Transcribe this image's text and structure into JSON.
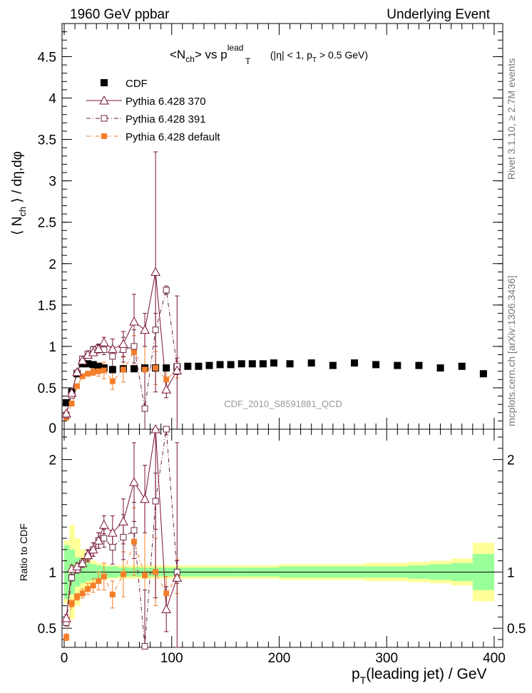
{
  "header": {
    "left": "1960 GeV ppbar",
    "right": "Underlying Event",
    "side_top": "Rivet 3.1.10, ≥ 2.7M events",
    "side_bottom": "mcplots.cern.ch [arXiv:1306.3436]",
    "watermark": "CDF_2010_S8591881_QCD"
  },
  "colors": {
    "cdf": "#000000",
    "p370": "#7a1233",
    "p391": "#6b2346",
    "pdefault": "#f47f2a",
    "band_inner": "#99ff99",
    "band_outer": "#ffff99"
  },
  "chart_data": [
    {
      "type": "scatter",
      "title": "<Nch> vs pT lead (|η| < 1, pT > 0.5 GeV)",
      "title_parts": {
        "main": "<N",
        "sub_ch": "ch",
        "mid": "> vs p",
        "sup": "lead",
        "sub_t": "T",
        "tail": " (|η| < 1, p",
        "tail_sub": "T",
        "tail_end": " > 0.5 GeV)"
      },
      "ylabel": "⟨ N_ch ⟩ / dη,dφ",
      "ylabel_parts": {
        "a": "⟨ N",
        "sub": "ch",
        "b": " ⟩ / dη,dφ"
      },
      "xlim": [
        -2,
        408
      ],
      "ylim": [
        0,
        4.9
      ],
      "yticks": [
        0.5,
        1,
        1.5,
        2,
        2.5,
        3,
        3.5,
        4,
        4.5
      ],
      "ytick_labels": [
        "0.5",
        "1",
        "1.5",
        "2",
        "2.5",
        "3",
        "3.5",
        "4",
        "4.5"
      ],
      "legend_position": "top-left",
      "series": [
        {
          "name": "CDF",
          "style": "filled-square",
          "x": [
            2,
            7,
            12,
            17,
            22,
            27,
            32,
            37,
            45,
            55,
            65,
            75,
            85,
            95,
            105,
            115,
            125,
            135,
            145,
            155,
            165,
            175,
            185,
            195,
            210,
            230,
            250,
            270,
            290,
            310,
            330,
            350,
            370,
            390
          ],
          "y": [
            0.32,
            0.45,
            0.67,
            0.79,
            0.79,
            0.78,
            0.76,
            0.74,
            0.72,
            0.73,
            0.73,
            0.74,
            0.74,
            0.74,
            0.75,
            0.76,
            0.76,
            0.77,
            0.78,
            0.78,
            0.79,
            0.79,
            0.79,
            0.8,
            0.79,
            0.8,
            0.77,
            0.8,
            0.78,
            0.77,
            0.77,
            0.74,
            0.76,
            0.67
          ]
        },
        {
          "name": "Pythia 6.428 370",
          "style": "open-triangle-solid",
          "x": [
            2,
            7,
            12,
            17,
            22,
            27,
            32,
            37,
            45,
            55,
            65,
            75,
            85,
            95,
            105
          ],
          "y": [
            0.19,
            0.44,
            0.69,
            0.83,
            0.9,
            0.93,
            0.97,
            1.05,
            0.97,
            1.03,
            1.3,
            1.2,
            1.9,
            0.48,
            0.71
          ],
          "err": [
            0.02,
            0.02,
            0.02,
            0.03,
            0.03,
            0.04,
            0.05,
            0.06,
            0.12,
            0.15,
            0.33,
            0.2,
            1.45,
            0.1,
            0.9
          ]
        },
        {
          "name": "Pythia 6.428 391",
          "style": "open-square-dashdot",
          "x": [
            2,
            7,
            12,
            17,
            22,
            27,
            32,
            37,
            45,
            55,
            65,
            75,
            85,
            95,
            105
          ],
          "y": [
            0.17,
            0.41,
            0.68,
            0.85,
            0.91,
            0.96,
            0.98,
            0.96,
            0.88,
            0.96,
            1.0,
            0.25,
            1.2,
            1.68,
            0.76
          ],
          "err": [
            0.02,
            0.02,
            0.02,
            0.03,
            0.03,
            0.04,
            0.05,
            0.06,
            0.12,
            0.15,
            0.2,
            0.5,
            0.2,
            0.05,
            0.1
          ]
        },
        {
          "name": "Pythia 6.428 default",
          "style": "filled-square-dashdot",
          "x": [
            2,
            7,
            12,
            17,
            22,
            27,
            32,
            37,
            45,
            55,
            65,
            75,
            85,
            95,
            105
          ],
          "y": [
            0.14,
            0.31,
            0.52,
            0.64,
            0.67,
            0.69,
            0.7,
            0.71,
            0.58,
            0.72,
            0.93,
            0.72,
            0.74,
            0.6,
            0.72
          ],
          "err": [
            0.02,
            0.02,
            0.02,
            0.03,
            0.03,
            0.04,
            0.06,
            0.1,
            0.1,
            0.15,
            0.2,
            0.5,
            0.2,
            0.1,
            0.1
          ]
        }
      ]
    },
    {
      "type": "scatter",
      "ylabel": "Ratio to CDF",
      "xlabel": "pT(leading jet) / GeV",
      "xlabel_parts": {
        "a": "p",
        "sub": "T",
        "b": "(leading jet) / GeV"
      },
      "xlim": [
        -2,
        408
      ],
      "ylim": [
        0.33,
        2.27
      ],
      "xticks": [
        0,
        100,
        200,
        300,
        400
      ],
      "xtick_labels": [
        "0",
        "100",
        "200",
        "300",
        "400"
      ],
      "yticks": [
        0.5,
        1,
        2
      ],
      "ytick_labels": [
        "0.5",
        "1",
        "2"
      ],
      "bands": {
        "x_edges": [
          0,
          5,
          10,
          15,
          20,
          25,
          30,
          35,
          40,
          50,
          60,
          70,
          80,
          90,
          100,
          110,
          120,
          130,
          140,
          150,
          160,
          170,
          180,
          190,
          200,
          220,
          240,
          260,
          280,
          300,
          320,
          340,
          360,
          380,
          400
        ],
        "inner": [
          0.24,
          0.2,
          0.13,
          0.1,
          0.08,
          0.07,
          0.06,
          0.05,
          0.05,
          0.04,
          0.04,
          0.04,
          0.04,
          0.04,
          0.04,
          0.04,
          0.04,
          0.04,
          0.04,
          0.04,
          0.04,
          0.04,
          0.04,
          0.04,
          0.05,
          0.05,
          0.05,
          0.05,
          0.05,
          0.05,
          0.06,
          0.07,
          0.08,
          0.16
        ],
        "outer": [
          0.28,
          0.42,
          0.3,
          0.2,
          0.14,
          0.1,
          0.08,
          0.07,
          0.06,
          0.06,
          0.06,
          0.06,
          0.06,
          0.06,
          0.06,
          0.06,
          0.06,
          0.06,
          0.06,
          0.06,
          0.06,
          0.06,
          0.06,
          0.06,
          0.07,
          0.07,
          0.07,
          0.07,
          0.08,
          0.08,
          0.09,
          0.1,
          0.12,
          0.26
        ]
      },
      "series": [
        {
          "name": "Pythia 6.428 370",
          "x": [
            2,
            7,
            12,
            17,
            22,
            27,
            32,
            37,
            45,
            55,
            65,
            75,
            85,
            95,
            105
          ],
          "y": [
            0.59,
            1.03,
            1.05,
            1.08,
            1.15,
            1.2,
            1.28,
            1.42,
            1.35,
            1.45,
            1.8,
            1.65,
            2.27,
            0.67,
            0.95
          ],
          "err": [
            0.03,
            0.03,
            0.03,
            0.04,
            0.05,
            0.06,
            0.07,
            0.08,
            0.15,
            0.2,
            0.35,
            0.3,
            1.5,
            0.2,
            1.2
          ]
        },
        {
          "name": "Pythia 6.428 391",
          "x": [
            2,
            7,
            12,
            17,
            22,
            27,
            32,
            37,
            45,
            55,
            65,
            75,
            85,
            95,
            105
          ],
          "y": [
            0.55,
            0.95,
            1.02,
            1.08,
            1.14,
            1.2,
            1.28,
            1.3,
            1.22,
            1.31,
            1.37,
            0.34,
            1.63,
            2.27,
            1.0
          ],
          "err": [
            0.03,
            0.03,
            0.03,
            0.04,
            0.05,
            0.06,
            0.07,
            0.08,
            0.15,
            0.2,
            0.25,
            0.5,
            0.25,
            0.05,
            0.1
          ]
        },
        {
          "name": "Pythia 6.428 default",
          "x": [
            2,
            7,
            12,
            17,
            22,
            27,
            32,
            37,
            45,
            55,
            65,
            75,
            85,
            95,
            105
          ],
          "y": [
            0.42,
            0.72,
            0.78,
            0.81,
            0.85,
            0.88,
            0.92,
            0.96,
            0.8,
            0.98,
            1.27,
            0.97,
            1.0,
            0.81,
            0.96
          ],
          "err": [
            0.03,
            0.03,
            0.03,
            0.04,
            0.05,
            0.06,
            0.08,
            0.12,
            0.12,
            0.2,
            0.3,
            0.7,
            0.3,
            0.15,
            0.15
          ]
        }
      ]
    }
  ]
}
